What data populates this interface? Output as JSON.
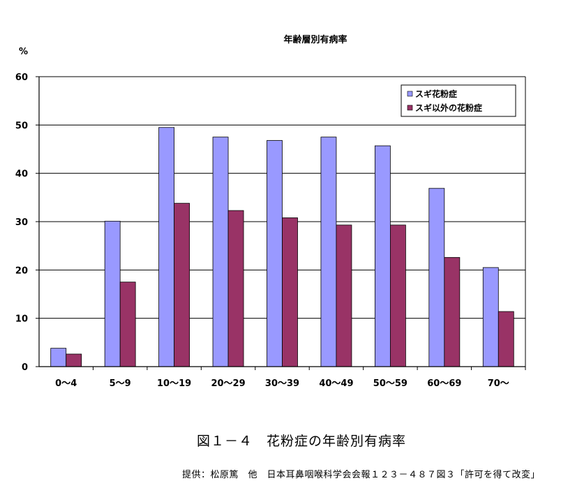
{
  "chart_data": {
    "type": "bar",
    "title": "年齢層別有病率",
    "ylabel": "%",
    "xlabel": "",
    "ylim": [
      0,
      60
    ],
    "yticks": [
      0,
      10,
      20,
      30,
      40,
      50,
      60
    ],
    "grid": true,
    "legend_position": "top-right",
    "categories": [
      "0～4",
      "5～9",
      "10～19",
      "20～29",
      "30～39",
      "40～49",
      "50～59",
      "60～69",
      "70～"
    ],
    "series": [
      {
        "name": "スギ花粉症",
        "color": "#9999ff",
        "values": [
          3.8,
          30.1,
          49.5,
          47.5,
          46.8,
          47.5,
          45.7,
          36.9,
          20.5
        ]
      },
      {
        "name": "スギ以外の花粉症",
        "color": "#993366",
        "values": [
          2.6,
          17.5,
          33.8,
          32.3,
          30.8,
          29.3,
          29.3,
          22.6,
          11.4
        ]
      }
    ]
  },
  "caption": "図１－４　花粉症の年齢別有病率",
  "source": "提供：松原篤　他　日本耳鼻咽喉科学会会報１２３－４８７図３「許可を得て改変」"
}
